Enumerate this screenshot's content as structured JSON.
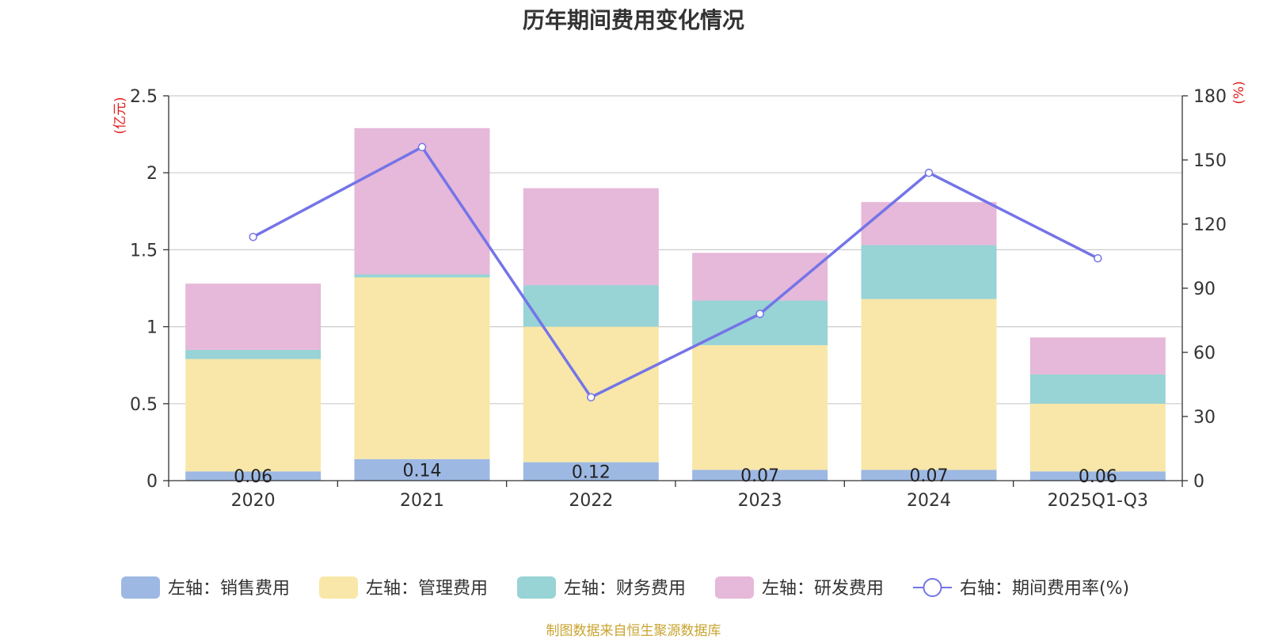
{
  "chart_data": {
    "type": "bar",
    "title": "历年期间费用变化情况",
    "categories": [
      "2020",
      "2021",
      "2022",
      "2023",
      "2024",
      "2025Q1-Q3"
    ],
    "left_axis": {
      "unit": "(亿元)",
      "ylim": [
        0,
        2.5
      ],
      "ticks": [
        "0",
        "0.5",
        "1",
        "1.5",
        "2",
        "2.5"
      ]
    },
    "right_axis": {
      "unit": "(%)",
      "ylim": [
        0,
        180
      ],
      "ticks": [
        "0",
        "30",
        "60",
        "90",
        "120",
        "150",
        "180"
      ]
    },
    "series": [
      {
        "name": "左轴：销售费用",
        "type": "bar",
        "axis": "left",
        "color": "#9db8e3",
        "values": [
          0.06,
          0.14,
          0.12,
          0.07,
          0.07,
          0.06
        ],
        "labels": [
          "0.06",
          "0.14",
          "0.12",
          "0.07",
          "0.07",
          "0.06"
        ]
      },
      {
        "name": "左轴：管理费用",
        "type": "bar",
        "axis": "left",
        "color": "#f8e7a8",
        "values": [
          0.73,
          1.18,
          0.88,
          0.81,
          1.11,
          0.44
        ]
      },
      {
        "name": "左轴：财务费用",
        "type": "bar",
        "axis": "left",
        "color": "#98d3d5",
        "values": [
          0.06,
          0.02,
          0.27,
          0.29,
          0.35,
          0.19
        ]
      },
      {
        "name": "左轴：研发费用",
        "type": "bar",
        "axis": "left",
        "color": "#e6b8d9",
        "values": [
          0.43,
          0.95,
          0.63,
          0.31,
          0.28,
          0.24
        ]
      },
      {
        "name": "右轴：期间费用率(%)",
        "type": "line",
        "axis": "right",
        "color": "#7474e8",
        "values": [
          114,
          156,
          39,
          78,
          144,
          104
        ]
      }
    ],
    "grid": true,
    "legend": "bottom-center",
    "source": "制图数据来自恒生聚源数据库"
  }
}
